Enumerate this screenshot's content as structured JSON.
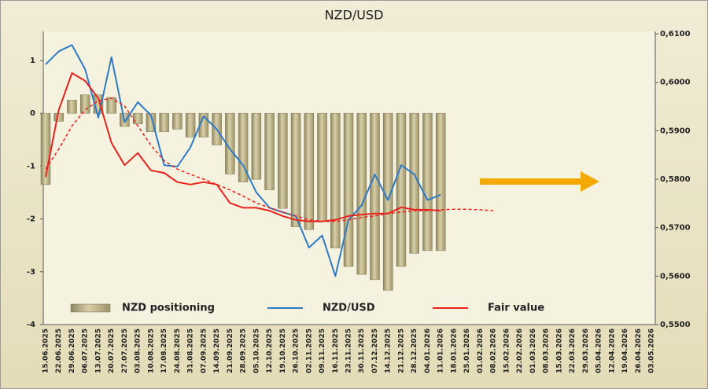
{
  "chart_data": {
    "type": "combo",
    "title": "NZD/USD",
    "categories": [
      "15.06.2025",
      "22.06.2025",
      "29.06.2025",
      "06.07.2025",
      "13.07.2025",
      "20.07.2025",
      "27.07.2025",
      "03.08.2025",
      "10.08.2025",
      "17.08.2025",
      "24.08.2025",
      "31.08.2025",
      "07.09.2025",
      "14.09.2025",
      "21.09.2025",
      "28.09.2025",
      "05.10.2025",
      "12.10.2025",
      "19.10.2025",
      "26.10.2025",
      "02.11.2025",
      "09.11.2025",
      "16.11.2025",
      "23.11.2025",
      "30.11.2025",
      "07.12.2025",
      "14.12.2025",
      "21.12.2025",
      "28.12.2025",
      "04.01.2026",
      "11.01.2026",
      "18.01.2026",
      "25.01.2026",
      "01.02.2026",
      "08.02.2026",
      "15.02.2026",
      "22.02.2026",
      "01.03.2026",
      "08.03.2026",
      "15.03.2026",
      "22.03.2026",
      "29.03.2026",
      "05.04.2026",
      "12.04.2026",
      "19.04.2026",
      "26.04.2026",
      "03.05.2026"
    ],
    "ylim": [
      -4,
      1.55
    ],
    "yticks": [
      -4,
      -3,
      -2,
      -1,
      0,
      1
    ],
    "y2lim": [
      0.55,
      0.6105
    ],
    "y2ticks": [
      {
        "value": 0.55,
        "label": "0,5500"
      },
      {
        "value": 0.56,
        "label": "0,5600"
      },
      {
        "value": 0.57,
        "label": "0,5700"
      },
      {
        "value": 0.58,
        "label": "0,5800"
      },
      {
        "value": 0.59,
        "label": "0,5900"
      },
      {
        "value": 0.6,
        "label": "0,6000"
      },
      {
        "value": 0.61,
        "label": "0,6100"
      }
    ],
    "legend": "bottom",
    "series": [
      {
        "name": "NZD positioning",
        "type": "bar",
        "color": "#b3a97c",
        "values": [
          -1.35,
          -0.15,
          0.25,
          0.35,
          0.35,
          0.3,
          -0.25,
          -0.2,
          -0.35,
          -0.35,
          -0.3,
          -0.45,
          -0.45,
          -0.6,
          -1.15,
          -1.3,
          -1.25,
          -1.45,
          -1.8,
          -2.15,
          -2.2,
          -2.05,
          -2.55,
          -2.9,
          -3.05,
          -3.15,
          -3.35,
          -2.9,
          -2.65,
          -2.6,
          -2.6,
          null,
          null,
          null,
          null,
          null,
          null,
          null,
          null,
          null,
          null,
          null,
          null,
          null,
          null,
          null,
          null
        ]
      },
      {
        "name": "NZD/USD",
        "type": "line",
        "axis": "y2",
        "color": "#2e7bc4",
        "values": [
          0.6037,
          0.6064,
          0.6077,
          0.6027,
          0.5927,
          0.6052,
          0.5918,
          0.5959,
          0.5932,
          0.5829,
          0.5826,
          0.5866,
          0.593,
          0.5903,
          0.5862,
          0.5829,
          0.5773,
          0.5741,
          0.5732,
          0.5724,
          0.5659,
          0.5684,
          0.56,
          0.5716,
          0.5746,
          0.581,
          0.5757,
          0.5829,
          0.581,
          0.5757,
          0.5768,
          null,
          null,
          null,
          null,
          null,
          null,
          null,
          null,
          null,
          null,
          null,
          null,
          null,
          null,
          null,
          null
        ]
      },
      {
        "name": "Fair value",
        "type": "line",
        "axis": "y2",
        "color": "#e8231c",
        "values": [
          0.5805,
          0.5943,
          0.6019,
          0.6003,
          0.5967,
          0.5875,
          0.5829,
          0.5854,
          0.5818,
          0.5813,
          0.5794,
          0.5789,
          0.5794,
          0.5789,
          0.5751,
          0.5741,
          0.5741,
          0.5735,
          0.5724,
          0.5716,
          0.5713,
          0.5713,
          0.5716,
          0.5724,
          0.5727,
          0.5729,
          0.5729,
          0.5742,
          0.5737,
          0.5737,
          0.5735,
          null,
          null,
          null,
          null,
          null,
          null,
          null,
          null,
          null,
          null,
          null,
          null,
          null,
          null,
          null,
          null
        ]
      },
      {
        "type": "line",
        "axis": "y2",
        "dashed": true,
        "color": "#e8231c",
        "values": [
          0.5821,
          0.5862,
          0.591,
          0.5943,
          0.5962,
          0.5967,
          0.5951,
          0.591,
          0.587,
          0.5838,
          0.5821,
          0.581,
          0.58,
          0.5789,
          0.5778,
          0.5765,
          0.5751,
          0.5741,
          0.5732,
          0.5724,
          0.5716,
          0.5713,
          0.5713,
          0.5716,
          0.5721,
          0.5724,
          0.5729,
          0.5732,
          0.5735,
          0.5735,
          0.5737,
          0.5738,
          0.5738,
          0.5737,
          0.5735,
          null,
          null,
          null,
          null,
          null,
          null,
          null,
          null,
          null,
          null,
          null,
          null
        ]
      }
    ]
  }
}
